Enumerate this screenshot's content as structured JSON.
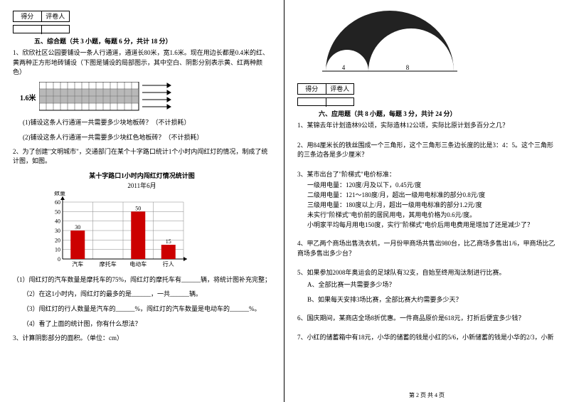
{
  "scorebox": {
    "c1": "得分",
    "c2": "评卷人"
  },
  "section5": {
    "title": "五、综合题（共 3 小题，每题 6 分，共计 18 分）",
    "q1": "1、欣欣社区公园要铺设一条人行通道，通道长80米，宽1.6米。现在用边长都是0.4米的红、黄两种正方形地砖铺设（下图是铺设的局部图示，其中空白、阴影分别表示黄、红两种颜色）",
    "q1_label": "1.6米",
    "q1_s1": "(1)铺设这条人行通道一共需要多少块地板砖？（不计损耗）",
    "q1_s2": "(2)铺设这条人行通道一共需要多少块红色地板砖？（不计损耗）",
    "q2": "2、为了创建\"文明城市\"，交通部门在某个十字路口统计1个小时内闯红灯的情况，制成了统计图，如图。",
    "chart_title": "某十字路口1小时内闯红灯情况统计图",
    "chart_date": "2011年6月",
    "chart_ylabel": "数量",
    "chart_xcats": [
      "汽车",
      "摩托车",
      "电动车",
      "行人"
    ],
    "chart_values": [
      30,
      null,
      50,
      15
    ],
    "chart_color": "#cc0000",
    "chart_grid": "#888",
    "chart_ymax": 60,
    "chart_step": 10,
    "q2_s1": "（1）闯红灯的汽车数量是摩托车的75%，闯红灯的摩托车有______辆，将统计图补充完整；",
    "q2_s2": "（2）在这1小时内，闯红灯的最多的是______，一共______辆。",
    "q2_s3": "（3）闯红灯的行人数量是汽车的______%，闯红灯的汽车数量是电动车的______%。",
    "q2_s4": "（4）看了上面的统计图，你有什么想法？",
    "q3": "3、计算阴影部分的面积。（单位：cm）"
  },
  "section6": {
    "title": "六、应用题（共 8 小题，每题 3 分，共计 24 分）",
    "q1": "1、某锦去年计划造林9公顷，实际造林12公顷，实际比原计划多百分之几？",
    "q2": "2、用84厘米长的铁丝围成一个三角形，这个三角形三条边长度的比是3：4：5。这个三角形的三条边各是多少厘米？",
    "q3": "3、某市出台了\"阶梯式\"电价标准：",
    "q3_l1": "一级用电量：120度/月及以下，0.45元/度",
    "q3_l2": "二级用电量：121～180度/月，超出一级用电标准的部分0.8元/度",
    "q3_l3": "三级用电量：180度以上/月，超出一级用电标准的部分1.2元/度",
    "q3_l4": "未实行\"阶梯式\"电价前的居民用电，其用电价格为0.6元/度。",
    "q3_l5": "小明家平均每月用电150度，实行\"阶梯式\"电价后用电费用是增加了还是减少了？",
    "q4": "4、甲乙两个商场出售洗衣机，一月份甲商场共售出980台，比乙商场多售出1/6，甲商场比乙商场多售出多少台？",
    "q5": "5、如果参加2008年奥运会的足球队有32支，自始至终用淘汰制进行比赛。",
    "q5_a": "A、全部比赛一共需要多少场？",
    "q5_b": "B、如果每天安排3场比赛，全部比赛大约需要多少天？",
    "q6": "6、国庆期间，某商店全场8折优惠。一件商品原价是618元，打折后便宜多少钱？",
    "q7": "7、小红的储蓄箱中有18元，小华的储蓄的钱是小红的5/6，小新储蓄的钱是小华的2/3，小新"
  },
  "arc": {
    "label_l": "4",
    "label_r": "8",
    "fill": "#222"
  },
  "tile": {
    "yellow": "#f5e6a0",
    "red": "#d88"
  },
  "footer": "第 2 页 共 4 页"
}
